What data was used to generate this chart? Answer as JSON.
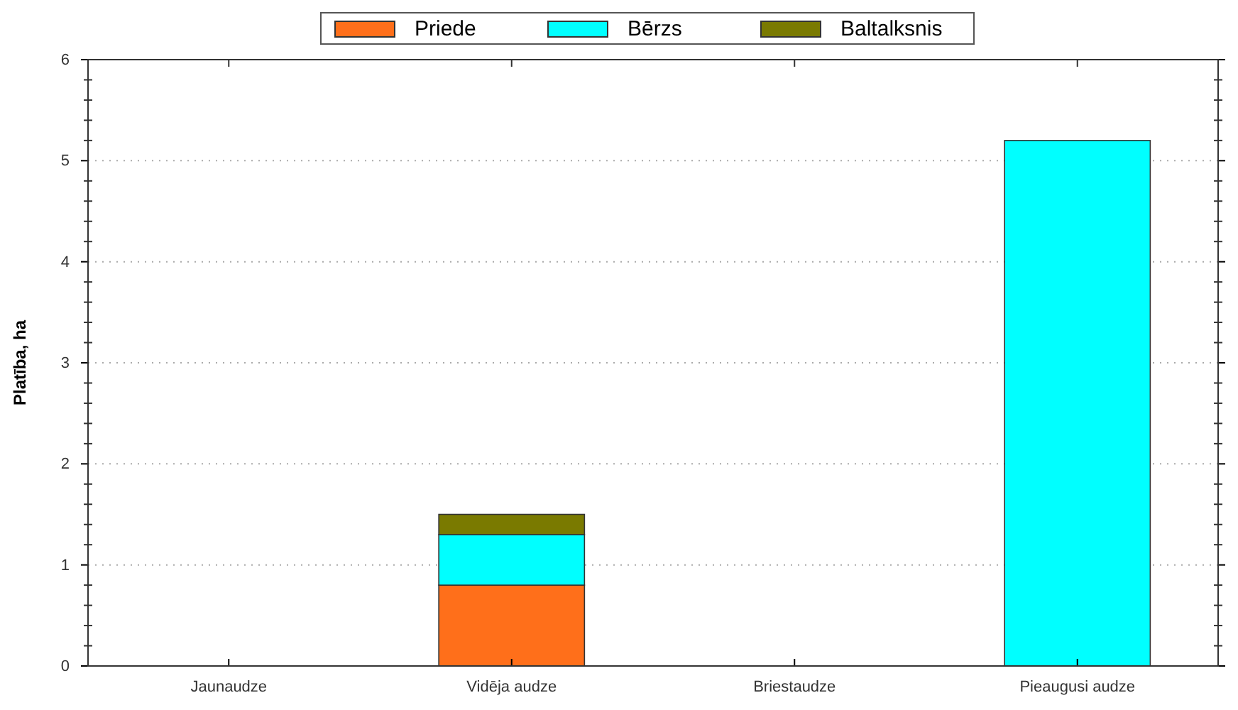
{
  "chart_data": {
    "type": "bar",
    "stacked": true,
    "ylabel": "Platība, ha",
    "categories": [
      "Jaunaudze",
      "Vidēja audze",
      "Briestaudze",
      "Pieaugusi audze"
    ],
    "series": [
      {
        "name": "Priede",
        "color": "#ff6f1a",
        "values": [
          0,
          0.8,
          0,
          0
        ]
      },
      {
        "name": "Bērzs",
        "color": "#00ffff",
        "values": [
          0,
          0.5,
          0,
          5.2
        ]
      },
      {
        "name": "Baltalksnis",
        "color": "#7a7a00",
        "values": [
          0,
          0.2,
          0,
          0
        ]
      }
    ],
    "ylim": [
      0,
      6
    ],
    "yticks": [
      0,
      1,
      2,
      3,
      4,
      5,
      6
    ],
    "grid": "y",
    "legend": "top"
  }
}
